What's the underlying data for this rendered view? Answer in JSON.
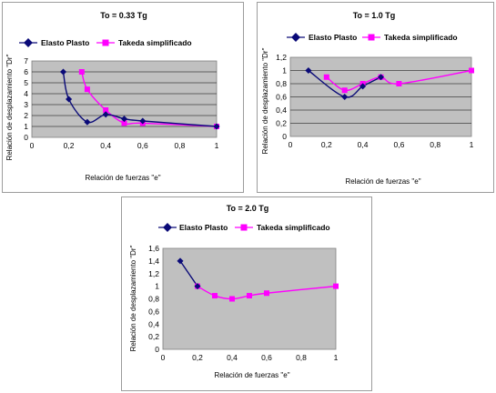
{
  "colors": {
    "series1": "#0a0a78",
    "series2": "#ff00ff",
    "plot_bg": "#c0c0c0",
    "border": "#9c9c9c"
  },
  "chart_data": [
    {
      "type": "line",
      "title": "To = 0.33 Tg",
      "xlabel": "Relación de fuerzas \"e\"",
      "ylabel": "Relación de desplazamiento \"Dr\"",
      "xlim": [
        0,
        1
      ],
      "ylim": [
        0,
        7
      ],
      "xticks": [
        "0",
        "0,2",
        "0,4",
        "0,6",
        "0,8",
        "1"
      ],
      "yticks": [
        "0",
        "1",
        "2",
        "3",
        "4",
        "5",
        "6",
        "7"
      ],
      "grid": true,
      "legend": "top",
      "series": [
        {
          "name": "Elasto Plasto",
          "marker": "diamond",
          "x": [
            0.17,
            0.2,
            0.3,
            0.4,
            0.5,
            0.6,
            1.0
          ],
          "y": [
            6.0,
            3.5,
            1.4,
            2.1,
            1.7,
            1.5,
            1.0
          ]
        },
        {
          "name": "Takeda simplificado",
          "marker": "square",
          "x": [
            0.27,
            0.3,
            0.4,
            0.5,
            0.6,
            1.0
          ],
          "y": [
            6.0,
            4.4,
            2.5,
            1.3,
            1.3,
            1.0
          ]
        }
      ]
    },
    {
      "type": "line",
      "title": "To = 1.0 Tg",
      "xlabel": "Relación de fuerzas \"e\"",
      "ylabel": "Relación de desplazamiento \"Dr\"",
      "xlim": [
        0,
        1
      ],
      "ylim": [
        0,
        1.2
      ],
      "xticks": [
        "0",
        "0,2",
        "0,4",
        "0,6",
        "0,8",
        "1"
      ],
      "yticks": [
        "0",
        "0,2",
        "0,4",
        "0,6",
        "0,8",
        "1",
        "1,2"
      ],
      "grid": true,
      "legend": "top",
      "series": [
        {
          "name": "Elasto Plasto",
          "marker": "diamond",
          "x": [
            0.1,
            0.3,
            0.4,
            0.5
          ],
          "y": [
            1.0,
            0.6,
            0.76,
            0.9
          ]
        },
        {
          "name": "Takeda simplificado",
          "marker": "square",
          "x": [
            0.2,
            0.3,
            0.4,
            0.5,
            0.6,
            1.0
          ],
          "y": [
            0.9,
            0.7,
            0.8,
            0.9,
            0.8,
            1.0
          ]
        }
      ]
    },
    {
      "type": "line",
      "title": "To = 2.0 Tg",
      "xlabel": "Relación de fuerzas \"e\"",
      "ylabel": "Relación de desplazamiento \"Dr\"",
      "xlim": [
        0,
        1
      ],
      "ylim": [
        0,
        1.6
      ],
      "xticks": [
        "0",
        "0,2",
        "0,4",
        "0,6",
        "0,8",
        "1"
      ],
      "yticks": [
        "0",
        "0,2",
        "0,4",
        "0,6",
        "0,8",
        "1",
        "1,2",
        "1,4",
        "1,6"
      ],
      "grid": false,
      "legend": "top",
      "series": [
        {
          "name": "Elasto Plasto",
          "marker": "diamond",
          "x": [
            0.1,
            0.2
          ],
          "y": [
            1.4,
            1.0
          ]
        },
        {
          "name": "Takeda simplificado",
          "marker": "square",
          "x": [
            0.2,
            0.3,
            0.4,
            0.5,
            0.6,
            1.0
          ],
          "y": [
            1.0,
            0.85,
            0.8,
            0.85,
            0.89,
            1.0
          ]
        }
      ]
    }
  ]
}
